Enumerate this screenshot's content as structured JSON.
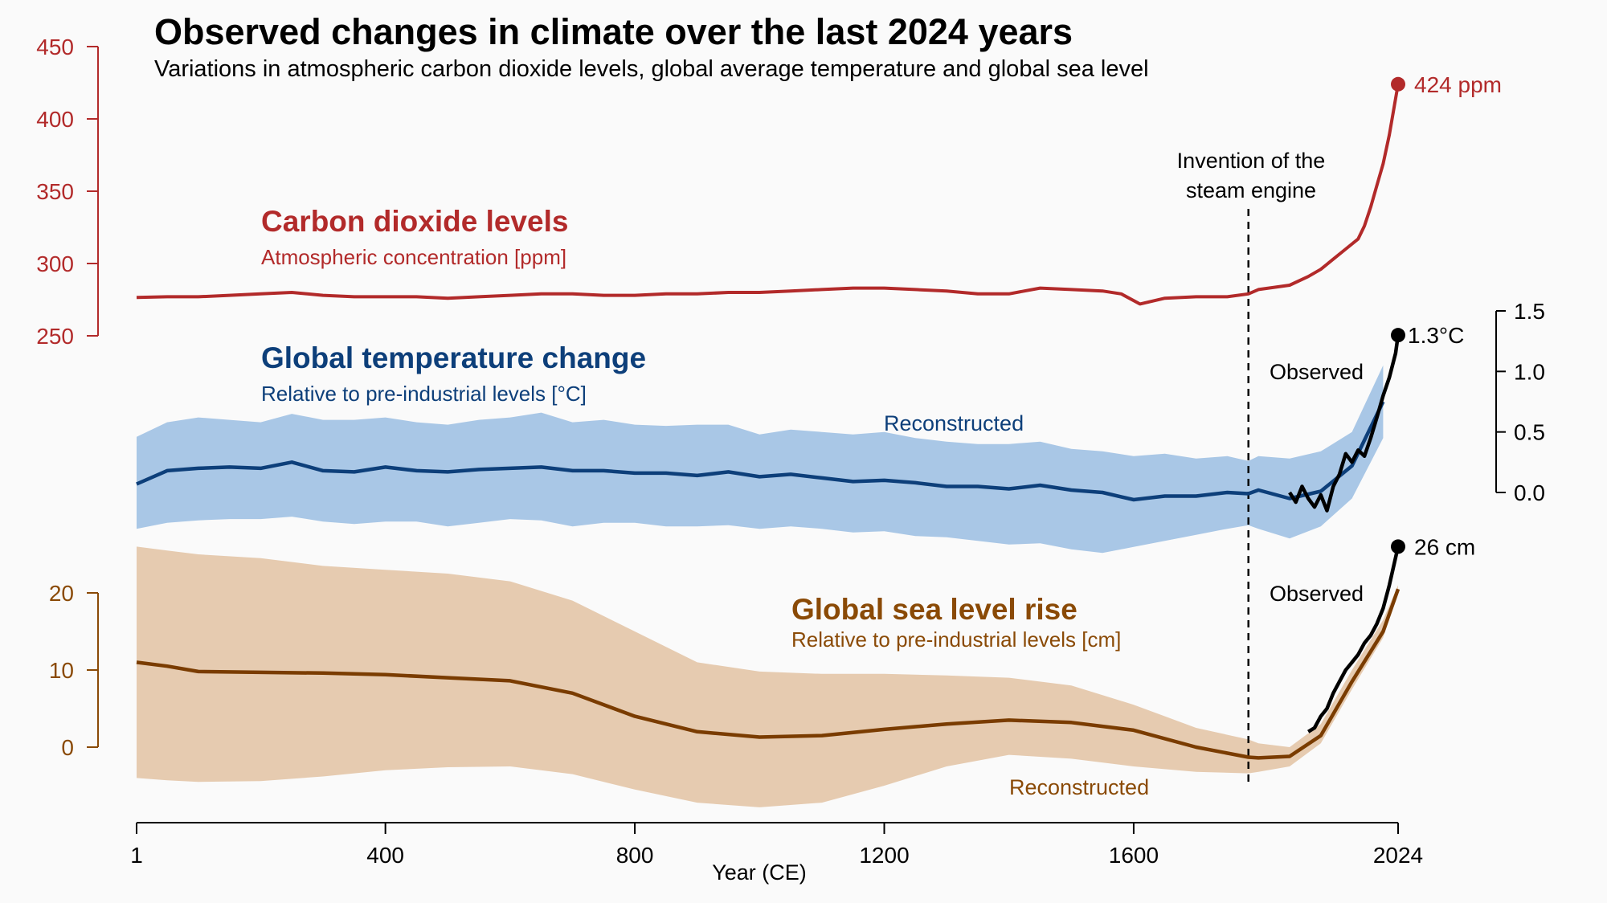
{
  "title": "Observed changes in climate over the last 2024 years",
  "subtitle": "Variations in atmospheric carbon dioxide levels, global average temperature and global sea level",
  "colors": {
    "co2": "#b22a2a",
    "temp_line": "#0d3f7a",
    "temp_band": "#a9c7e6",
    "sea_line": "#7a3c00",
    "sea_label": "#8a4a06",
    "sea_band": "#e6cbb0",
    "observed": "#000000"
  },
  "x_axis": {
    "label": "Year (CE)",
    "ticks": [
      "1",
      "400",
      "800",
      "1200",
      "1600",
      "2024"
    ]
  },
  "annotations": {
    "steam_engine": [
      "Invention of the",
      "steam engine"
    ],
    "steam_engine_year": 1784
  },
  "chart_data": [
    {
      "type": "line",
      "name": "co2",
      "title": "Carbon dioxide levels",
      "subtitle": "Atmospheric concentration [ppm]",
      "y_ticks": [
        "450",
        "400",
        "350",
        "300",
        "250"
      ],
      "ylim": [
        250,
        450
      ],
      "end_label": "424 ppm",
      "x": [
        1,
        50,
        100,
        150,
        200,
        250,
        300,
        350,
        400,
        450,
        500,
        550,
        600,
        650,
        700,
        750,
        800,
        850,
        900,
        950,
        1000,
        1050,
        1100,
        1150,
        1200,
        1250,
        1300,
        1350,
        1400,
        1450,
        1500,
        1550,
        1580,
        1610,
        1650,
        1700,
        1750,
        1784,
        1800,
        1850,
        1880,
        1900,
        1920,
        1940,
        1960,
        1970,
        1980,
        1990,
        2000,
        2010,
        2024
      ],
      "values": [
        276.5,
        277,
        277,
        278,
        279,
        280,
        278,
        277,
        277,
        277,
        276,
        277,
        278,
        279,
        279,
        278,
        278,
        279,
        279,
        280,
        280,
        281,
        282,
        283,
        283,
        282,
        281,
        279,
        279,
        283,
        282,
        281,
        279,
        272,
        276,
        277,
        277,
        279,
        282,
        285,
        291,
        296,
        303,
        310,
        317,
        326,
        339,
        354,
        369,
        389,
        424
      ]
    },
    {
      "type": "area",
      "name": "temperature",
      "title": "Global temperature change",
      "subtitle": "Relative to pre-industrial levels [°C]",
      "y_ticks": [
        "1.5",
        "1.0",
        "0.5",
        "0.0"
      ],
      "ylim": [
        0,
        1.5
      ],
      "reconstructed_label": "Reconstructed",
      "observed_label": "Observed",
      "end_label": "1.3°C",
      "reconstructed": {
        "x": [
          1,
          50,
          100,
          150,
          200,
          250,
          300,
          350,
          400,
          450,
          500,
          550,
          600,
          650,
          700,
          750,
          800,
          850,
          900,
          950,
          1000,
          1050,
          1100,
          1150,
          1200,
          1250,
          1300,
          1350,
          1400,
          1450,
          1500,
          1550,
          1600,
          1650,
          1700,
          1750,
          1784,
          1800,
          1850,
          1900,
          1950,
          2000
        ],
        "values": [
          0.07,
          0.18,
          0.2,
          0.21,
          0.2,
          0.25,
          0.18,
          0.17,
          0.21,
          0.18,
          0.17,
          0.19,
          0.2,
          0.21,
          0.18,
          0.18,
          0.16,
          0.16,
          0.14,
          0.17,
          0.13,
          0.15,
          0.12,
          0.09,
          0.1,
          0.08,
          0.05,
          0.05,
          0.03,
          0.06,
          0.02,
          0.0,
          -0.06,
          -0.03,
          -0.03,
          0.0,
          -0.01,
          0.02,
          -0.05,
          0.01,
          0.22,
          0.75
        ],
        "lower": [
          -0.3,
          -0.25,
          -0.23,
          -0.22,
          -0.22,
          -0.2,
          -0.24,
          -0.26,
          -0.24,
          -0.24,
          -0.28,
          -0.25,
          -0.22,
          -0.23,
          -0.28,
          -0.25,
          -0.25,
          -0.28,
          -0.28,
          -0.27,
          -0.3,
          -0.28,
          -0.3,
          -0.33,
          -0.32,
          -0.36,
          -0.37,
          -0.4,
          -0.43,
          -0.42,
          -0.47,
          -0.5,
          -0.45,
          -0.4,
          -0.35,
          -0.3,
          -0.27,
          -0.3,
          -0.38,
          -0.28,
          -0.05,
          0.45
        ],
        "upper": [
          0.46,
          0.58,
          0.62,
          0.6,
          0.58,
          0.65,
          0.6,
          0.6,
          0.62,
          0.58,
          0.56,
          0.6,
          0.62,
          0.66,
          0.58,
          0.6,
          0.56,
          0.55,
          0.56,
          0.56,
          0.48,
          0.52,
          0.5,
          0.48,
          0.5,
          0.45,
          0.42,
          0.4,
          0.4,
          0.42,
          0.36,
          0.34,
          0.3,
          0.32,
          0.28,
          0.3,
          0.26,
          0.3,
          0.28,
          0.34,
          0.5,
          1.05
        ]
      },
      "observed": {
        "x": [
          1850,
          1860,
          1870,
          1880,
          1890,
          1900,
          1910,
          1920,
          1930,
          1940,
          1950,
          1960,
          1970,
          1980,
          1990,
          2000,
          2010,
          2015,
          2020,
          2024
        ],
        "values": [
          0.0,
          -0.08,
          0.05,
          -0.05,
          -0.12,
          -0.02,
          -0.15,
          0.05,
          0.15,
          0.32,
          0.25,
          0.35,
          0.3,
          0.45,
          0.62,
          0.8,
          0.95,
          1.05,
          1.15,
          1.3
        ]
      }
    },
    {
      "type": "area",
      "name": "sea_level",
      "title": "Global sea level rise",
      "subtitle": "Relative to pre-industrial levels [cm]",
      "y_ticks": [
        "20",
        "10",
        "0"
      ],
      "ylim": [
        0,
        20
      ],
      "reconstructed_label": "Reconstructed",
      "observed_label": "Observed",
      "end_label": "26 cm",
      "reconstructed": {
        "x": [
          1,
          50,
          100,
          200,
          300,
          400,
          500,
          600,
          700,
          800,
          900,
          1000,
          1100,
          1200,
          1300,
          1400,
          1500,
          1600,
          1700,
          1784,
          1800,
          1850,
          1900,
          1950,
          2000,
          2024
        ],
        "values": [
          11,
          10.5,
          9.8,
          9.7,
          9.6,
          9.4,
          9.0,
          8.6,
          7.0,
          4.0,
          2.0,
          1.3,
          1.5,
          2.3,
          3.0,
          3.5,
          3.2,
          2.2,
          0.0,
          -1.3,
          -1.4,
          -1.2,
          1.5,
          8.5,
          15.0,
          20.5
        ],
        "lower": [
          -4,
          -4.3,
          -4.5,
          -4.4,
          -3.8,
          -3.0,
          -2.6,
          -2.5,
          -3.5,
          -5.5,
          -7.2,
          -7.8,
          -7.2,
          -5.0,
          -2.5,
          -1.0,
          -1.5,
          -2.5,
          -3.2,
          -3.4,
          -3.2,
          -2.5,
          0.5,
          7.5,
          14.2,
          20.0
        ],
        "upper": [
          26,
          25.5,
          25,
          24.5,
          23.5,
          23.0,
          22.5,
          21.5,
          19.0,
          15.0,
          11.0,
          9.8,
          9.5,
          9.5,
          9.3,
          9.0,
          8.0,
          5.5,
          2.5,
          1.0,
          0.5,
          0.0,
          3.0,
          10.0,
          16.5,
          21.0
        ]
      },
      "observed": {
        "x": [
          1880,
          1890,
          1900,
          1910,
          1920,
          1930,
          1940,
          1950,
          1960,
          1970,
          1980,
          1990,
          2000,
          2010,
          2024
        ],
        "values": [
          2.0,
          2.5,
          4.0,
          5.0,
          7.0,
          8.5,
          10.0,
          11.0,
          12.0,
          13.5,
          14.5,
          16.0,
          18.0,
          21.0,
          26.0
        ]
      }
    }
  ]
}
